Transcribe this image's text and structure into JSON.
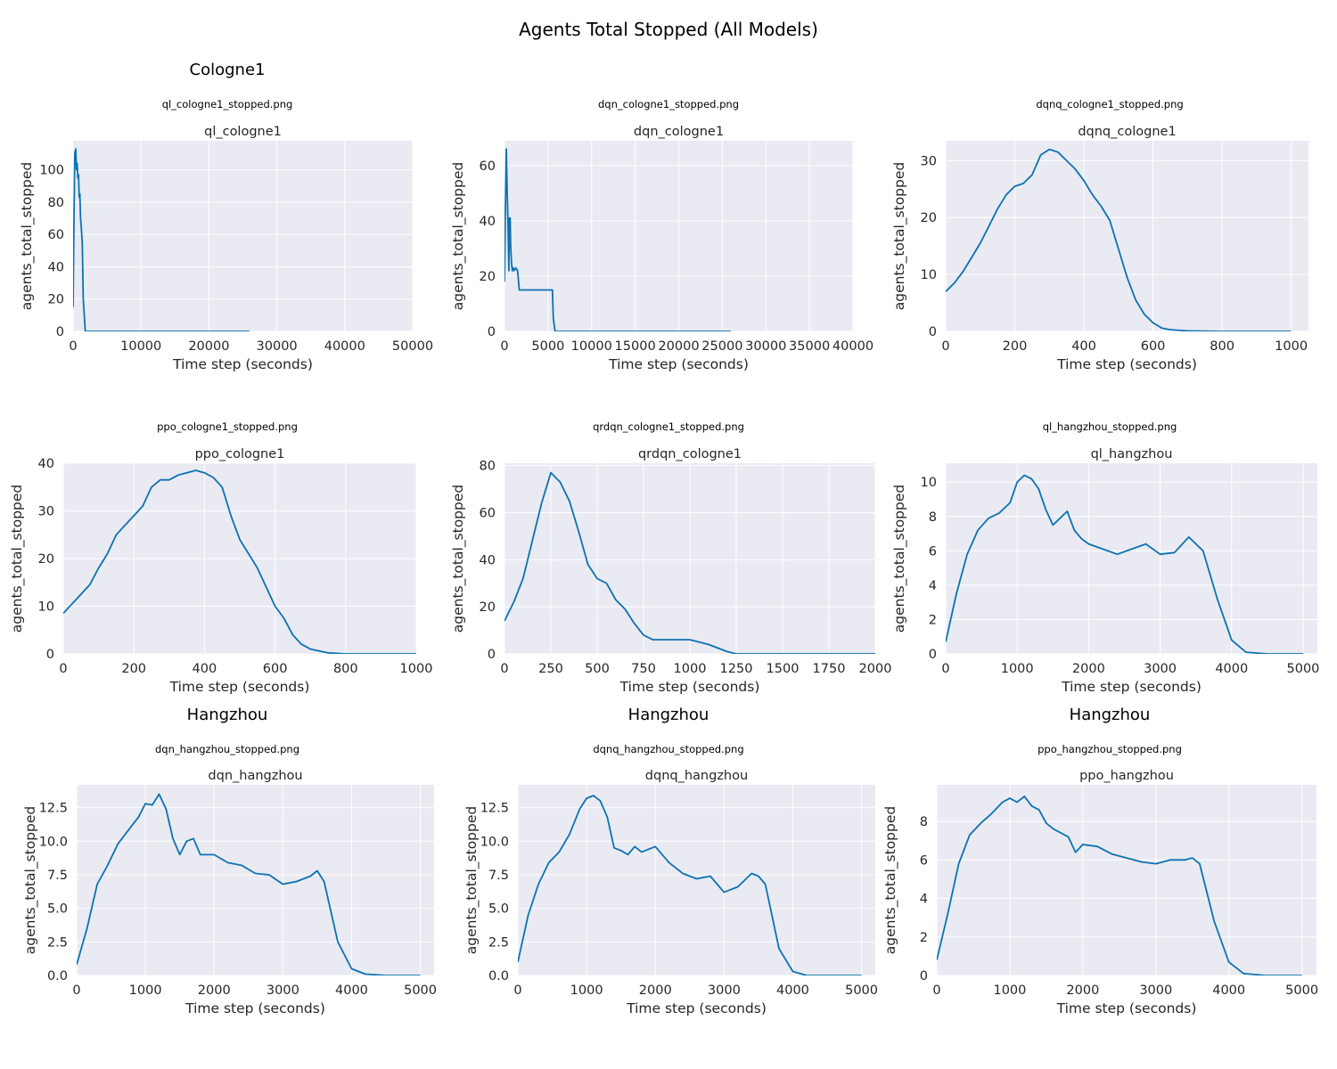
{
  "figure_title": "Agents Total Stopped (All Models)",
  "colors": {
    "line": "#0c72b1",
    "plot_bg": "#eaeaf2",
    "grid": "#ffffff",
    "text": "#262626"
  },
  "chart_data": [
    {
      "type": "line",
      "group_label": "Cologne1",
      "filename": "ql_cologne1_stopped.png",
      "title": "ql_cologne1",
      "xlabel": "Time step (seconds)",
      "ylabel": "agents_total_stopped",
      "xlim": [
        0,
        50000
      ],
      "ylim": [
        0,
        118
      ],
      "xticks": [
        0,
        10000,
        20000,
        30000,
        40000,
        50000
      ],
      "yticks": [
        0,
        20,
        40,
        60,
        80,
        100
      ],
      "x": [
        0,
        100,
        250,
        400,
        500,
        600,
        700,
        800,
        900,
        1000,
        1100,
        1200,
        1350,
        1500,
        1800,
        2500,
        5000,
        10000,
        26000
      ],
      "y": [
        15,
        60,
        110,
        113,
        100,
        104,
        95,
        97,
        83,
        85,
        70,
        65,
        55,
        20,
        0,
        0,
        0,
        0,
        0
      ]
    },
    {
      "type": "line",
      "group_label": "",
      "filename": "dqn_cologne1_stopped.png",
      "title": "dqn_cologne1",
      "xlabel": "Time step (seconds)",
      "ylabel": "agents_total_stopped",
      "xlim": [
        0,
        40000
      ],
      "ylim": [
        0,
        69
      ],
      "xticks": [
        0,
        5000,
        10000,
        15000,
        20000,
        25000,
        30000,
        35000,
        40000
      ],
      "yticks": [
        0,
        20,
        40,
        60
      ],
      "x": [
        0,
        100,
        200,
        300,
        400,
        500,
        550,
        650,
        700,
        800,
        900,
        1000,
        1100,
        1300,
        1500,
        1700,
        1800,
        2000,
        3000,
        4000,
        5000,
        5500,
        5600,
        5800,
        10000,
        20000,
        26000
      ],
      "y": [
        18,
        45,
        66,
        52,
        40,
        22,
        41,
        41,
        32,
        25,
        22,
        23,
        22,
        23,
        22,
        15,
        15,
        15,
        15,
        15,
        15,
        15,
        5,
        0,
        0,
        0,
        0
      ]
    },
    {
      "type": "line",
      "group_label": "",
      "filename": "dqnq_cologne1_stopped.png",
      "title": "dqnq_cologne1",
      "xlabel": "Time step (seconds)",
      "ylabel": "agents_total_stopped",
      "xlim": [
        0,
        1050
      ],
      "ylim": [
        0,
        33.5
      ],
      "xticks": [
        0,
        200,
        400,
        600,
        800,
        1000
      ],
      "yticks": [
        0,
        10,
        20,
        30
      ],
      "x": [
        0,
        25,
        50,
        75,
        100,
        125,
        150,
        175,
        200,
        225,
        250,
        275,
        300,
        325,
        350,
        375,
        400,
        425,
        450,
        475,
        500,
        525,
        550,
        575,
        600,
        625,
        650,
        700,
        800,
        900,
        1000
      ],
      "y": [
        7,
        8.5,
        10.5,
        13,
        15.5,
        18.5,
        21.5,
        24,
        25.5,
        26,
        27.5,
        31,
        32,
        31.5,
        30,
        28.5,
        26.5,
        24,
        22,
        19.5,
        14.5,
        9.5,
        5.5,
        3,
        1.5,
        0.6,
        0.3,
        0.1,
        0,
        0,
        0
      ]
    },
    {
      "type": "line",
      "group_label": "",
      "filename": "ppo_cologne1_stopped.png",
      "title": "ppo_cologne1",
      "xlabel": "Time step (seconds)",
      "ylabel": "agents_total_stopped",
      "xlim": [
        0,
        1000
      ],
      "ylim": [
        0,
        40
      ],
      "xticks": [
        0,
        200,
        400,
        600,
        800,
        1000
      ],
      "yticks": [
        0,
        10,
        20,
        30,
        40
      ],
      "x": [
        0,
        25,
        50,
        75,
        100,
        125,
        150,
        175,
        200,
        225,
        250,
        275,
        300,
        325,
        350,
        375,
        400,
        425,
        450,
        475,
        500,
        525,
        550,
        575,
        600,
        625,
        650,
        675,
        700,
        750,
        800,
        900,
        1000
      ],
      "y": [
        8.5,
        10.5,
        12.5,
        14.5,
        18,
        21,
        25,
        27,
        29,
        31,
        35,
        36.5,
        36.5,
        37.5,
        38,
        38.5,
        38,
        37,
        35,
        29,
        24,
        21,
        18,
        14,
        10,
        7.5,
        4,
        2,
        1,
        0.2,
        0,
        0,
        0
      ]
    },
    {
      "type": "line",
      "group_label": "",
      "filename": "qrdqn_cologne1_stopped.png",
      "title": "qrdqn_cologne1",
      "xlabel": "Time step (seconds)",
      "ylabel": "agents_total_stopped",
      "xlim": [
        0,
        2000
      ],
      "ylim": [
        0,
        81
      ],
      "xticks": [
        0,
        250,
        500,
        750,
        1000,
        1250,
        1500,
        1750,
        2000
      ],
      "yticks": [
        0,
        20,
        40,
        60,
        80
      ],
      "x": [
        0,
        50,
        100,
        150,
        200,
        250,
        300,
        350,
        400,
        450,
        500,
        550,
        600,
        650,
        700,
        750,
        800,
        850,
        900,
        950,
        1000,
        1100,
        1200,
        1250,
        1500,
        1750,
        2000
      ],
      "y": [
        14,
        22,
        32,
        48,
        64,
        77,
        73,
        65,
        52,
        38,
        32,
        30,
        23,
        19,
        13,
        8,
        6,
        6,
        6,
        6,
        6,
        4,
        1,
        0,
        0,
        0,
        0
      ]
    },
    {
      "type": "line",
      "group_label": "",
      "filename": "ql_hangzhou_stopped.png",
      "title": "ql_hangzhou",
      "xlabel": "Time step (seconds)",
      "ylabel": "agents_total_stopped",
      "xlim": [
        0,
        5200
      ],
      "ylim": [
        0,
        11.1
      ],
      "xticks": [
        0,
        1000,
        2000,
        3000,
        4000,
        5000
      ],
      "yticks": [
        0,
        2,
        4,
        6,
        8,
        10
      ],
      "x": [
        0,
        150,
        300,
        450,
        600,
        750,
        900,
        1000,
        1100,
        1200,
        1300,
        1400,
        1500,
        1600,
        1700,
        1800,
        1900,
        2000,
        2200,
        2400,
        2600,
        2800,
        3000,
        3200,
        3400,
        3600,
        3800,
        4000,
        4200,
        4500,
        5000
      ],
      "y": [
        0.7,
        3.5,
        5.8,
        7.2,
        7.9,
        8.2,
        8.8,
        10,
        10.4,
        10.2,
        9.6,
        8.4,
        7.5,
        7.9,
        8.3,
        7.2,
        6.7,
        6.4,
        6.1,
        5.8,
        6.1,
        6.4,
        5.8,
        5.9,
        6.8,
        6.0,
        3.2,
        0.8,
        0.1,
        0,
        0
      ]
    },
    {
      "type": "line",
      "group_label": "Hangzhou",
      "filename": "dqn_hangzhou_stopped.png",
      "title": "dqn_hangzhou",
      "xlabel": "Time step (seconds)",
      "ylabel": "agents_total_stopped",
      "xlim": [
        0,
        5200
      ],
      "ylim": [
        0,
        14.2
      ],
      "xticks": [
        0,
        1000,
        2000,
        3000,
        4000,
        5000
      ],
      "yticks": [
        0,
        2.5,
        5.0,
        7.5,
        10.0,
        12.5
      ],
      "ytick_labels": [
        "0.0",
        "2.5",
        "5.0",
        "7.5",
        "10.0",
        "12.5"
      ],
      "x": [
        0,
        150,
        300,
        450,
        600,
        750,
        900,
        1000,
        1100,
        1200,
        1300,
        1400,
        1500,
        1600,
        1700,
        1800,
        2000,
        2200,
        2400,
        2600,
        2800,
        3000,
        3200,
        3400,
        3500,
        3600,
        3800,
        4000,
        4200,
        4500,
        5000
      ],
      "y": [
        0.8,
        3.5,
        6.8,
        8.2,
        9.8,
        10.8,
        11.8,
        12.8,
        12.7,
        13.5,
        12.4,
        10.2,
        9.0,
        10.0,
        10.2,
        9.0,
        9.0,
        8.4,
        8.2,
        7.6,
        7.5,
        6.8,
        7.0,
        7.4,
        7.8,
        7.0,
        2.5,
        0.5,
        0.1,
        0,
        0
      ]
    },
    {
      "type": "line",
      "group_label": "Hangzhou",
      "filename": "dqnq_hangzhou_stopped.png",
      "title": "dqnq_hangzhou",
      "xlabel": "Time step (seconds)",
      "ylabel": "agents_total_stopped",
      "xlim": [
        0,
        5200
      ],
      "ylim": [
        0,
        14.2
      ],
      "xticks": [
        0,
        1000,
        2000,
        3000,
        4000,
        5000
      ],
      "yticks": [
        0,
        2.5,
        5.0,
        7.5,
        10.0,
        12.5
      ],
      "ytick_labels": [
        "0.0",
        "2.5",
        "5.0",
        "7.5",
        "10.0",
        "12.5"
      ],
      "x": [
        0,
        150,
        300,
        450,
        600,
        750,
        900,
        1000,
        1100,
        1200,
        1300,
        1400,
        1500,
        1600,
        1700,
        1800,
        2000,
        2200,
        2400,
        2600,
        2800,
        3000,
        3200,
        3400,
        3500,
        3600,
        3800,
        4000,
        4200,
        4500,
        5000
      ],
      "y": [
        1.0,
        4.5,
        6.8,
        8.4,
        9.2,
        10.5,
        12.4,
        13.2,
        13.4,
        13.0,
        11.8,
        9.5,
        9.3,
        9.0,
        9.6,
        9.2,
        9.6,
        8.4,
        7.6,
        7.2,
        7.4,
        6.2,
        6.6,
        7.6,
        7.4,
        6.8,
        2.0,
        0.3,
        0,
        0,
        0
      ]
    },
    {
      "type": "line",
      "group_label": "Hangzhou",
      "filename": "ppo_hangzhou_stopped.png",
      "title": "ppo_hangzhou",
      "xlabel": "Time step (seconds)",
      "ylabel": "agents_total_stopped",
      "xlim": [
        0,
        5200
      ],
      "ylim": [
        0,
        9.9
      ],
      "xticks": [
        0,
        1000,
        2000,
        3000,
        4000,
        5000
      ],
      "yticks": [
        0,
        2,
        4,
        6,
        8
      ],
      "x": [
        0,
        150,
        300,
        450,
        600,
        750,
        900,
        1000,
        1100,
        1200,
        1300,
        1400,
        1500,
        1600,
        1700,
        1800,
        1900,
        2000,
        2200,
        2400,
        2600,
        2800,
        3000,
        3200,
        3400,
        3500,
        3600,
        3800,
        4000,
        4200,
        4500,
        5000
      ],
      "y": [
        0.8,
        3.2,
        5.8,
        7.3,
        7.9,
        8.4,
        9.0,
        9.2,
        9.0,
        9.3,
        8.8,
        8.6,
        7.9,
        7.6,
        7.4,
        7.2,
        6.4,
        6.8,
        6.7,
        6.3,
        6.1,
        5.9,
        5.8,
        6.0,
        6.0,
        6.1,
        5.8,
        2.8,
        0.7,
        0.1,
        0,
        0
      ]
    }
  ]
}
